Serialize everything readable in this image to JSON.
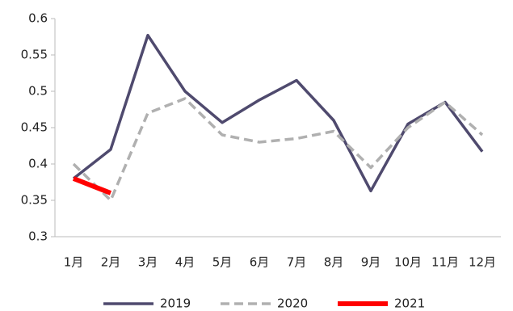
{
  "chart_data": {
    "type": "line",
    "categories": [
      "1月",
      "2月",
      "3月",
      "4月",
      "5月",
      "6月",
      "7月",
      "8月",
      "9月",
      "10月",
      "11月",
      "12月"
    ],
    "series": [
      {
        "name": "2019",
        "color": "#4f4a6e",
        "dash": false,
        "values": [
          0.38,
          0.42,
          0.577,
          0.5,
          0.457,
          0.488,
          0.515,
          0.46,
          0.363,
          0.455,
          0.485,
          0.417
        ]
      },
      {
        "name": "2020",
        "color": "#b0b0b0",
        "dash": true,
        "values": [
          0.4,
          0.35,
          0.47,
          0.49,
          0.44,
          0.43,
          0.435,
          0.445,
          0.395,
          0.45,
          0.485,
          0.44
        ]
      },
      {
        "name": "2021",
        "color": "#ff0000",
        "dash": false,
        "values": [
          0.38,
          0.36,
          null,
          null,
          null,
          null,
          null,
          null,
          null,
          null,
          null,
          null
        ]
      }
    ],
    "ylim": [
      0.3,
      0.6
    ],
    "yticks": [
      0.3,
      0.35,
      0.4,
      0.45,
      0.5,
      0.55,
      0.6
    ],
    "grid": false,
    "legend": "bottom"
  }
}
